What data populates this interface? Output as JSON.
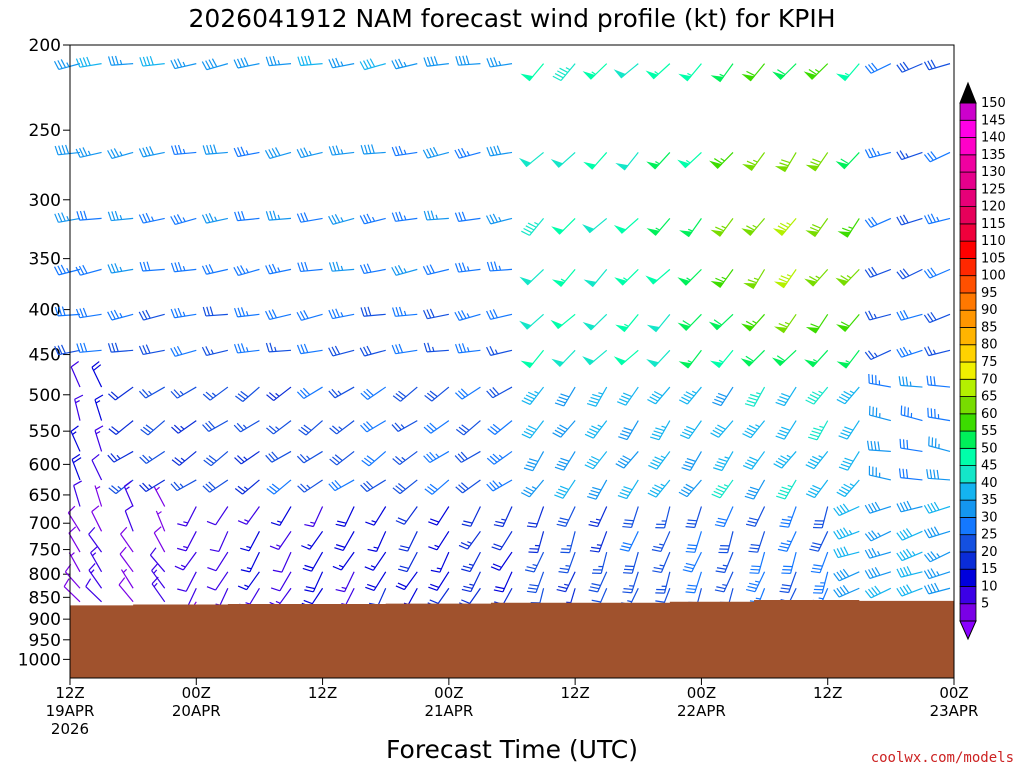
{
  "chart_data": {
    "type": "wind_profile",
    "title": "2026041912 NAM forecast wind profile (kt) for KPIH",
    "xlabel": "Forecast Time (UTC)",
    "ylabel": "",
    "credit": "coolwx.com/models",
    "x_range_hours": [
      0,
      84
    ],
    "x_ticks": [
      {
        "hour": 0,
        "lines": [
          "12Z",
          "19APR",
          "2026"
        ]
      },
      {
        "hour": 12,
        "lines": [
          "00Z",
          "20APR"
        ]
      },
      {
        "hour": 24,
        "lines": [
          "12Z"
        ]
      },
      {
        "hour": 36,
        "lines": [
          "00Z",
          "21APR"
        ]
      },
      {
        "hour": 48,
        "lines": [
          "12Z"
        ]
      },
      {
        "hour": 60,
        "lines": [
          "00Z",
          "22APR"
        ]
      },
      {
        "hour": 72,
        "lines": [
          "12Z"
        ]
      },
      {
        "hour": 84,
        "lines": [
          "00Z",
          "23APR"
        ]
      }
    ],
    "y_ticks": [
      200,
      250,
      300,
      350,
      400,
      450,
      500,
      550,
      600,
      650,
      700,
      750,
      800,
      850,
      900,
      950,
      1000
    ],
    "y_range_hpa": [
      200,
      1050
    ],
    "colorbar_levels": [
      5,
      10,
      15,
      20,
      25,
      30,
      35,
      40,
      45,
      50,
      55,
      60,
      65,
      70,
      75,
      80,
      85,
      90,
      95,
      100,
      105,
      110,
      115,
      120,
      125,
      130,
      135,
      140,
      145,
      150
    ],
    "colorbar_colors": [
      "#7a00e6",
      "#3c00e6",
      "#0000dc",
      "#0a2cd8",
      "#1450e0",
      "#1478ff",
      "#1496f0",
      "#14b4f0",
      "#14e6c8",
      "#00ffaa",
      "#00f05a",
      "#3cdc00",
      "#78dc00",
      "#b4f000",
      "#f0f000",
      "#ffd200",
      "#ffb400",
      "#ff9600",
      "#ff7800",
      "#ff5000",
      "#ff2800",
      "#ff0000",
      "#f0003c",
      "#e6005a",
      "#e60078",
      "#e6008c",
      "#f000a0",
      "#ff00c8",
      "#ff00e6",
      "#cc00cc"
    ],
    "terrain_color": "#a0522d",
    "terrain_surface_hpa": [
      {
        "hour": 0,
        "p": 868
      },
      {
        "hour": 6,
        "p": 866
      },
      {
        "hour": 15,
        "p": 865
      },
      {
        "hour": 30,
        "p": 864
      },
      {
        "hour": 40,
        "p": 862
      },
      {
        "hour": 57,
        "p": 860
      },
      {
        "hour": 65,
        "p": 856
      },
      {
        "hour": 75,
        "p": 858
      },
      {
        "hour": 84,
        "p": 860
      }
    ],
    "barb_hours": [
      0,
      3,
      6,
      9,
      12,
      15,
      18,
      21,
      24,
      27,
      30,
      33,
      36,
      39,
      42,
      45,
      48,
      51,
      54,
      57,
      60,
      63,
      66,
      69,
      72,
      75,
      78,
      81,
      84
    ],
    "barb_levels_hpa": [
      210,
      265,
      315,
      360,
      405,
      445,
      490,
      535,
      580,
      625,
      670,
      715,
      755,
      795,
      830,
      860
    ],
    "wind_regimes": {
      "upper_west": {
        "dir_deg": 260,
        "speed_kt": 30
      },
      "upper_southwest_jet": {
        "dir_deg": 225,
        "speed_kt": 50
      },
      "upper_jet_core": {
        "dir_deg": 215,
        "speed_kt": 72
      },
      "low_north_weak": {
        "dir_deg": 340,
        "speed_kt": 10
      },
      "low_southwest": {
        "dir_deg": 210,
        "speed_kt": 25
      },
      "low_west_late": {
        "dir_deg": 250,
        "speed_kt": 40
      }
    }
  }
}
